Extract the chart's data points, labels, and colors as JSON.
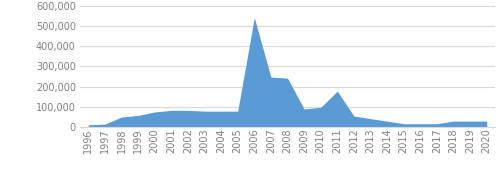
{
  "years": [
    1996,
    1997,
    1998,
    1999,
    2000,
    2001,
    2002,
    2003,
    2004,
    2005,
    2006,
    2007,
    2008,
    2009,
    2010,
    2011,
    2012,
    2013,
    2014,
    2015,
    2016,
    2017,
    2018,
    2019,
    2020
  ],
  "values": [
    12000,
    15000,
    50000,
    58000,
    75000,
    83000,
    83000,
    79000,
    79000,
    79000,
    541000,
    247000,
    242000,
    90000,
    98000,
    178000,
    55000,
    42000,
    30000,
    17000,
    17000,
    17000,
    30000,
    30000,
    30000
  ],
  "fill_color": "#5b9bd5",
  "line_color": "#5b9bd5",
  "background_color": "#ffffff",
  "grid_color": "#d9d9d9",
  "ylim": [
    0,
    600000
  ],
  "yticks": [
    0,
    100000,
    200000,
    300000,
    400000,
    500000,
    600000
  ],
  "ytick_labels": [
    "0",
    "100,000",
    "200,000",
    "300,000",
    "400,000",
    "500,000",
    "600,000"
  ],
  "xlabel": "",
  "ylabel": "",
  "tick_fontsize": 7,
  "tick_color": "#808080"
}
